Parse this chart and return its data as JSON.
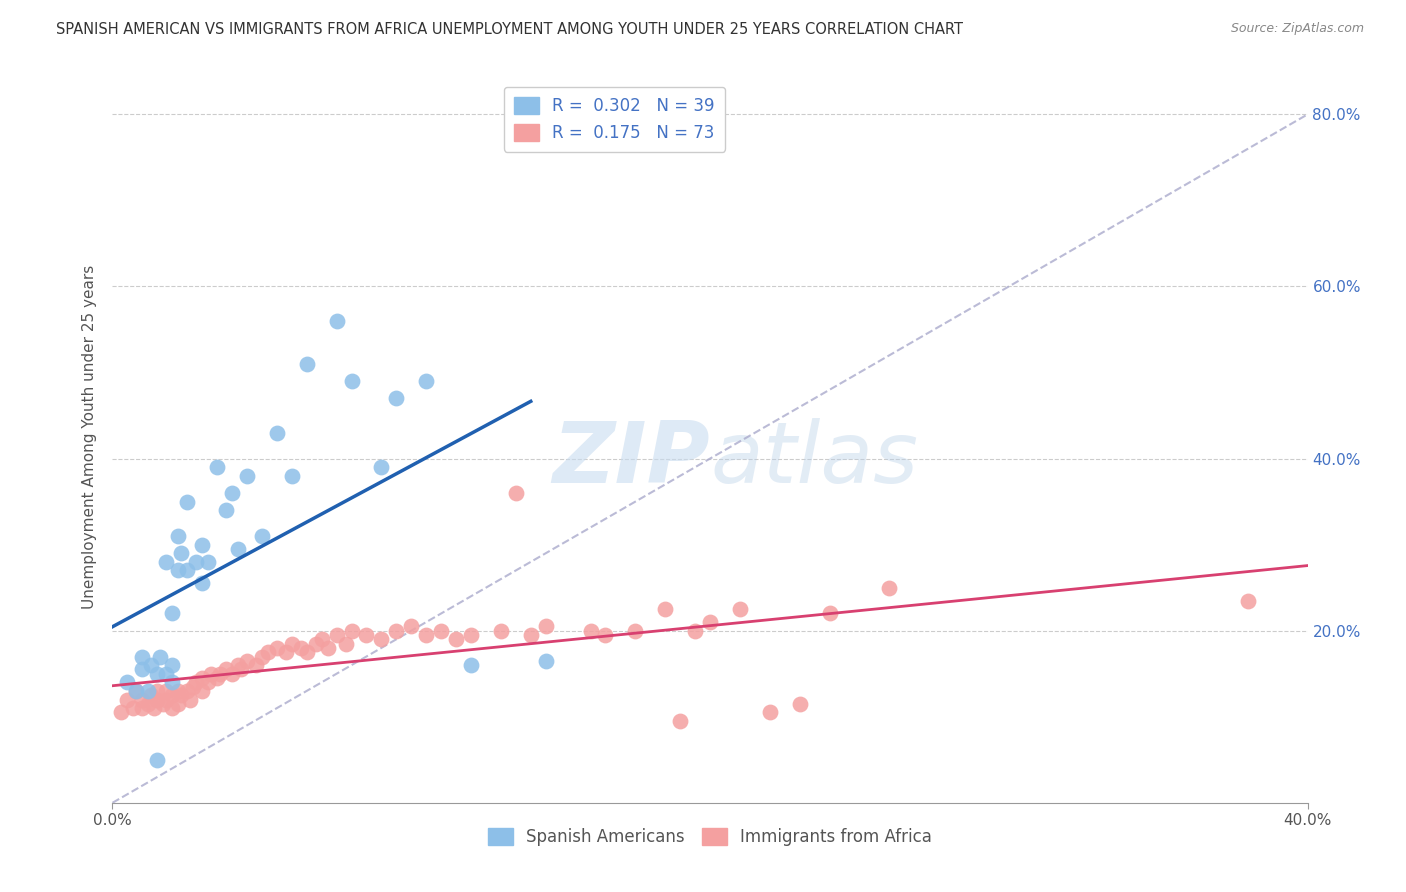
{
  "title": "SPANISH AMERICAN VS IMMIGRANTS FROM AFRICA UNEMPLOYMENT AMONG YOUTH UNDER 25 YEARS CORRELATION CHART",
  "source": "Source: ZipAtlas.com",
  "ylabel": "Unemployment Among Youth under 25 years",
  "xlim": [
    0.0,
    0.4
  ],
  "ylim": [
    0.0,
    0.85
  ],
  "xticks": [
    0.0,
    0.4
  ],
  "xticklabels": [
    "0.0%",
    "40.0%"
  ],
  "yticks_right": [
    0.2,
    0.4,
    0.6,
    0.8
  ],
  "yticklabels_right": [
    "20.0%",
    "40.0%",
    "60.0%",
    "80.0%"
  ],
  "grid_yticks": [
    0.2,
    0.4,
    0.6,
    0.8
  ],
  "legend1_label": "R =  0.302   N = 39",
  "legend2_label": "R =  0.175   N = 73",
  "blue_color": "#8DBFE8",
  "pink_color": "#F4A0A0",
  "line_blue": "#2060B0",
  "line_pink": "#D84070",
  "line_dashed": "#AAAACC",
  "watermark_zip": "ZIP",
  "watermark_atlas": "atlas",
  "legend_bottom_labels": [
    "Spanish Americans",
    "Immigrants from Africa"
  ],
  "blue_scatter_x": [
    0.005,
    0.008,
    0.01,
    0.01,
    0.012,
    0.013,
    0.015,
    0.015,
    0.016,
    0.018,
    0.018,
    0.02,
    0.02,
    0.02,
    0.022,
    0.022,
    0.023,
    0.025,
    0.025,
    0.028,
    0.03,
    0.03,
    0.032,
    0.035,
    0.038,
    0.04,
    0.042,
    0.045,
    0.05,
    0.055,
    0.06,
    0.065,
    0.075,
    0.08,
    0.09,
    0.095,
    0.105,
    0.12,
    0.145
  ],
  "blue_scatter_y": [
    0.14,
    0.13,
    0.155,
    0.17,
    0.13,
    0.16,
    0.05,
    0.15,
    0.17,
    0.15,
    0.28,
    0.14,
    0.16,
    0.22,
    0.27,
    0.31,
    0.29,
    0.27,
    0.35,
    0.28,
    0.255,
    0.3,
    0.28,
    0.39,
    0.34,
    0.36,
    0.295,
    0.38,
    0.31,
    0.43,
    0.38,
    0.51,
    0.56,
    0.49,
    0.39,
    0.47,
    0.49,
    0.16,
    0.165
  ],
  "pink_scatter_x": [
    0.003,
    0.005,
    0.007,
    0.008,
    0.01,
    0.01,
    0.012,
    0.013,
    0.014,
    0.015,
    0.015,
    0.017,
    0.018,
    0.018,
    0.02,
    0.02,
    0.022,
    0.022,
    0.023,
    0.025,
    0.026,
    0.027,
    0.028,
    0.03,
    0.03,
    0.032,
    0.033,
    0.035,
    0.036,
    0.038,
    0.04,
    0.042,
    0.043,
    0.045,
    0.048,
    0.05,
    0.052,
    0.055,
    0.058,
    0.06,
    0.063,
    0.065,
    0.068,
    0.07,
    0.072,
    0.075,
    0.078,
    0.08,
    0.085,
    0.09,
    0.095,
    0.1,
    0.105,
    0.11,
    0.115,
    0.12,
    0.13,
    0.135,
    0.14,
    0.145,
    0.16,
    0.165,
    0.175,
    0.185,
    0.19,
    0.195,
    0.2,
    0.21,
    0.22,
    0.23,
    0.24,
    0.26,
    0.38
  ],
  "pink_scatter_y": [
    0.105,
    0.12,
    0.11,
    0.13,
    0.11,
    0.12,
    0.115,
    0.125,
    0.11,
    0.12,
    0.13,
    0.115,
    0.12,
    0.13,
    0.11,
    0.125,
    0.13,
    0.115,
    0.125,
    0.13,
    0.12,
    0.135,
    0.14,
    0.13,
    0.145,
    0.14,
    0.15,
    0.145,
    0.15,
    0.155,
    0.15,
    0.16,
    0.155,
    0.165,
    0.16,
    0.17,
    0.175,
    0.18,
    0.175,
    0.185,
    0.18,
    0.175,
    0.185,
    0.19,
    0.18,
    0.195,
    0.185,
    0.2,
    0.195,
    0.19,
    0.2,
    0.205,
    0.195,
    0.2,
    0.19,
    0.195,
    0.2,
    0.36,
    0.195,
    0.205,
    0.2,
    0.195,
    0.2,
    0.225,
    0.095,
    0.2,
    0.21,
    0.225,
    0.105,
    0.115,
    0.22,
    0.25,
    0.235
  ]
}
